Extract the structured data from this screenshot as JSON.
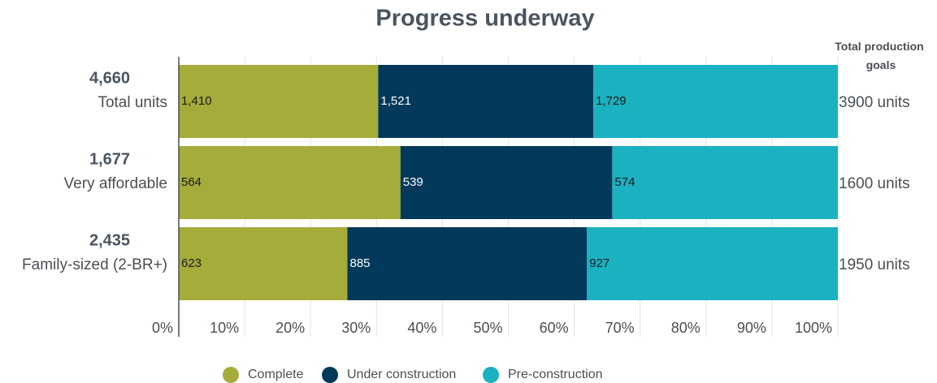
{
  "chart_data": {
    "type": "bar",
    "orientation": "horizontal",
    "stacked": "percent",
    "title": "Progress underway",
    "categories": [
      "Total units",
      "Very affordable",
      "Family-sized (2-BR+)"
    ],
    "totals": [
      4660,
      1677,
      2435
    ],
    "total_labels": [
      "4,660",
      "1,677",
      "2,435"
    ],
    "goals_title": "Total production goals",
    "goals": [
      3900,
      1600,
      1950
    ],
    "goal_labels": [
      "3900 units",
      "1600 units",
      "1950 units"
    ],
    "series": [
      {
        "name": "Complete",
        "color": "#a5ac3a",
        "values": [
          1410,
          564,
          623
        ],
        "value_labels": [
          "1,410",
          "564",
          "623"
        ]
      },
      {
        "name": "Under construction",
        "color": "#03395a",
        "values": [
          1521,
          539,
          885
        ],
        "value_labels": [
          "1,521",
          "539",
          "885"
        ]
      },
      {
        "name": "Pre-construction",
        "color": "#1bb1c1",
        "values": [
          1729,
          574,
          927
        ],
        "value_labels": [
          "1,729",
          "574",
          "927"
        ]
      }
    ],
    "xlim": [
      0,
      100
    ],
    "xticks": [
      {
        "value": 0,
        "label": "0%"
      },
      {
        "value": 10,
        "label": "10%"
      },
      {
        "value": 20,
        "label": "20%"
      },
      {
        "value": 30,
        "label": "30%"
      },
      {
        "value": 40,
        "label": "40%"
      },
      {
        "value": 50,
        "label": "50%"
      },
      {
        "value": 60,
        "label": "60%"
      },
      {
        "value": 70,
        "label": "70%"
      },
      {
        "value": 80,
        "label": "80%"
      },
      {
        "value": 90,
        "label": "90%"
      },
      {
        "value": 100,
        "label": "100%"
      }
    ],
    "grid": true,
    "legend": "bottom"
  }
}
